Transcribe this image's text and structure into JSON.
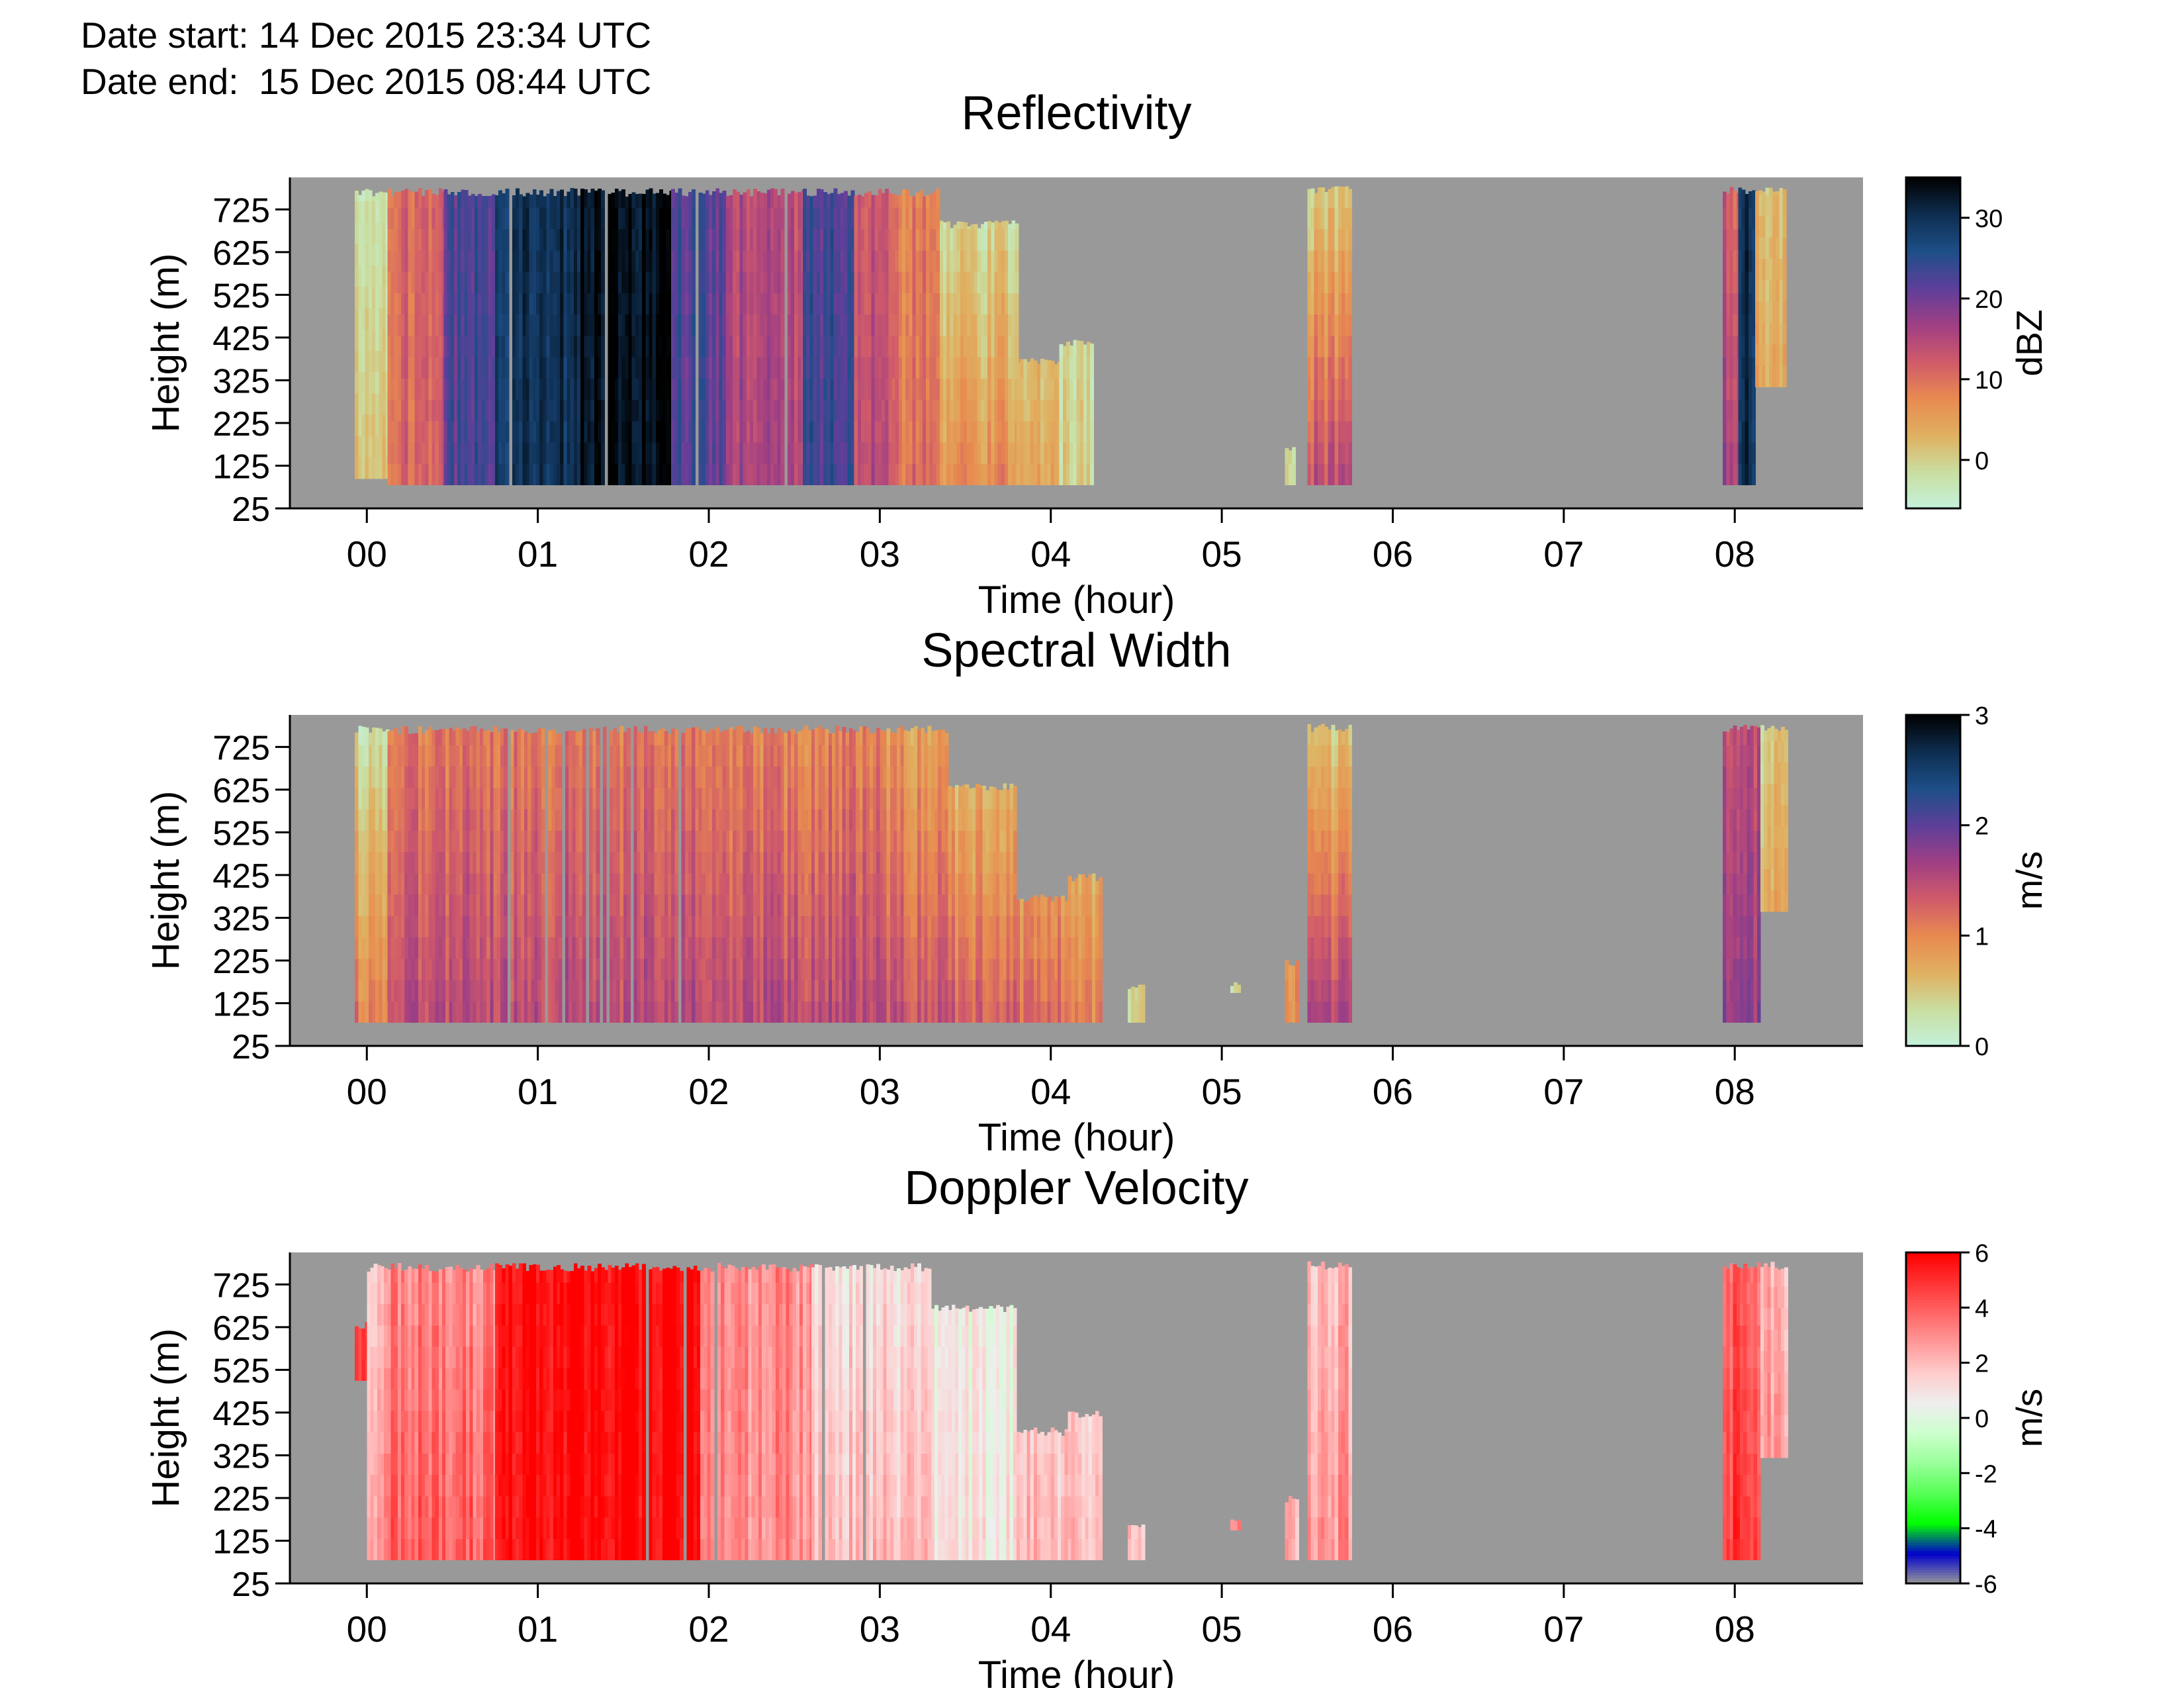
{
  "header": {
    "date_start": "Date start: 14 Dec 2015 23:34 UTC",
    "date_end": "Date end:  15 Dec 2015 08:44 UTC"
  },
  "chart_data": [
    {
      "type": "heatmap",
      "title": "Reflectivity",
      "xlabel": "Time (hour)",
      "ylabel": "Height (m)",
      "x_ticks": [
        "00",
        "01",
        "02",
        "03",
        "04",
        "05",
        "06",
        "07",
        "08"
      ],
      "y_ticks": [
        25,
        125,
        225,
        325,
        425,
        525,
        625,
        725
      ],
      "xlim": [
        -0.45,
        8.75
      ],
      "ylim": [
        25,
        800
      ],
      "grid": false,
      "colorbar": {
        "label": "dBZ",
        "ticks": [
          0,
          10,
          20,
          30
        ],
        "range": [
          -6,
          35
        ]
      },
      "colors": [
        "#c4f2dc",
        "#c9dea0",
        "#e0b060",
        "#e88a50",
        "#d05a6a",
        "#a03f84",
        "#5d3f9a",
        "#1d4f88",
        "#0e2e50",
        "#000000"
      ],
      "nodata_color": "#999999",
      "segments": [
        {
          "t0": -0.07,
          "t1": 0.12,
          "zmin": 95,
          "zmax": 775,
          "v": [
            2,
            -2
          ]
        },
        {
          "t0": 0.12,
          "t1": 0.45,
          "zmin": 80,
          "zmax": 775,
          "v": [
            11,
            11
          ]
        },
        {
          "t0": 0.45,
          "t1": 0.75,
          "zmin": 80,
          "zmax": 775,
          "v": [
            23,
            23
          ]
        },
        {
          "t0": 0.75,
          "t1": 1.25,
          "zmin": 80,
          "zmax": 775,
          "v": [
            30,
            30
          ]
        },
        {
          "t0": 1.25,
          "t1": 1.78,
          "zmin": 80,
          "zmax": 775,
          "v": [
            34,
            34
          ]
        },
        {
          "t0": 1.78,
          "t1": 2.1,
          "zmin": 80,
          "zmax": 775,
          "v": [
            22,
            22
          ]
        },
        {
          "t0": 2.1,
          "t1": 2.55,
          "zmin": 80,
          "zmax": 775,
          "v": [
            16,
            15
          ]
        },
        {
          "t0": 2.55,
          "t1": 2.85,
          "zmin": 80,
          "zmax": 775,
          "v": [
            24,
            23
          ]
        },
        {
          "t0": 2.85,
          "t1": 3.05,
          "zmin": 80,
          "zmax": 775,
          "v": [
            15,
            13
          ]
        },
        {
          "t0": 3.05,
          "t1": 3.35,
          "zmin": 80,
          "zmax": 775,
          "v": [
            10,
            8
          ]
        },
        {
          "t0": 3.35,
          "t1": 3.8,
          "zmin": 80,
          "zmax": 700,
          "v": [
            7,
            -2
          ]
        },
        {
          "t0": 3.8,
          "t1": 4.05,
          "zmin": 80,
          "zmax": 380,
          "v": [
            4,
            -2
          ]
        },
        {
          "t0": 4.05,
          "t1": 4.25,
          "zmin": 80,
          "zmax": 420,
          "v": [
            0,
            -3
          ]
        },
        {
          "t0": 5.37,
          "t1": 5.42,
          "zmin": 80,
          "zmax": 180,
          "v": [
            -2,
            -3
          ]
        },
        {
          "t0": 5.5,
          "t1": 5.75,
          "zmin": 80,
          "zmax": 780,
          "v": [
            14,
            0
          ]
        },
        {
          "t0": 7.93,
          "t1": 8.02,
          "zmin": 80,
          "zmax": 780,
          "v": [
            17,
            12
          ]
        },
        {
          "t0": 8.02,
          "t1": 8.12,
          "zmin": 80,
          "zmax": 780,
          "v": [
            30,
            30
          ]
        },
        {
          "t0": 8.12,
          "t1": 8.3,
          "zmin": 310,
          "zmax": 780,
          "v": [
            6,
            2
          ]
        }
      ]
    },
    {
      "type": "heatmap",
      "title": "Spectral Width",
      "xlabel": "Time (hour)",
      "ylabel": "Height (m)",
      "x_ticks": [
        "00",
        "01",
        "02",
        "03",
        "04",
        "05",
        "06",
        "07",
        "08"
      ],
      "y_ticks": [
        25,
        125,
        225,
        325,
        425,
        525,
        625,
        725
      ],
      "xlim": [
        -0.45,
        8.75
      ],
      "ylim": [
        25,
        800
      ],
      "grid": false,
      "colorbar": {
        "label": "m/s",
        "ticks": [
          0,
          1,
          2,
          3
        ],
        "range": [
          0,
          3
        ]
      },
      "colors": [
        "#c4f2dc",
        "#c9dea0",
        "#e0b060",
        "#e88a50",
        "#d05a6a",
        "#a03f84",
        "#5d3f9a",
        "#1d4f88",
        "#0e2e50",
        "#000000"
      ],
      "nodata_color": "#999999",
      "segments": [
        {
          "t0": -0.07,
          "t1": 0.12,
          "zmin": 80,
          "zmax": 775,
          "v": [
            1.1,
            0.3
          ]
        },
        {
          "t0": 0.12,
          "t1": 0.6,
          "zmin": 80,
          "zmax": 775,
          "v": [
            1.5,
            1.1
          ]
        },
        {
          "t0": 0.6,
          "t1": 1.5,
          "zmin": 80,
          "zmax": 775,
          "v": [
            1.5,
            1.1
          ]
        },
        {
          "t0": 1.5,
          "t1": 2.2,
          "zmin": 80,
          "zmax": 775,
          "v": [
            1.5,
            1.1
          ]
        },
        {
          "t0": 2.2,
          "t1": 3.0,
          "zmin": 80,
          "zmax": 775,
          "v": [
            1.5,
            1.0
          ]
        },
        {
          "t0": 3.0,
          "t1": 3.4,
          "zmin": 80,
          "zmax": 775,
          "v": [
            1.4,
            0.8
          ]
        },
        {
          "t0": 3.4,
          "t1": 3.8,
          "zmin": 80,
          "zmax": 640,
          "v": [
            1.3,
            0.5
          ]
        },
        {
          "t0": 3.8,
          "t1": 4.1,
          "zmin": 80,
          "zmax": 380,
          "v": [
            1.2,
            0.4
          ]
        },
        {
          "t0": 4.1,
          "t1": 4.3,
          "zmin": 80,
          "zmax": 430,
          "v": [
            1.0,
            0.4
          ]
        },
        {
          "t0": 4.45,
          "t1": 4.55,
          "zmin": 80,
          "zmax": 170,
          "v": [
            0.4,
            0.3
          ]
        },
        {
          "t0": 5.05,
          "t1": 5.1,
          "zmin": 150,
          "zmax": 180,
          "v": [
            0.3,
            0.3
          ]
        },
        {
          "t0": 5.37,
          "t1": 5.45,
          "zmin": 80,
          "zmax": 230,
          "v": [
            0.9,
            0.6
          ]
        },
        {
          "t0": 5.5,
          "t1": 5.75,
          "zmin": 80,
          "zmax": 780,
          "v": [
            1.5,
            0.4
          ]
        },
        {
          "t0": 7.93,
          "t1": 8.15,
          "zmin": 80,
          "zmax": 780,
          "v": [
            1.7,
            1.4
          ]
        },
        {
          "t0": 8.15,
          "t1": 8.3,
          "zmin": 340,
          "zmax": 780,
          "v": [
            0.8,
            0.4
          ]
        }
      ]
    },
    {
      "type": "heatmap",
      "title": "Doppler Velocity",
      "xlabel": "Time (hour)",
      "ylabel": "Height (m)",
      "x_ticks": [
        "00",
        "01",
        "02",
        "03",
        "04",
        "05",
        "06",
        "07",
        "08"
      ],
      "y_ticks": [
        25,
        125,
        225,
        325,
        425,
        525,
        625,
        725
      ],
      "xlim": [
        -0.45,
        8.75
      ],
      "ylim": [
        25,
        800
      ],
      "grid": false,
      "colorbar": {
        "label": "m/s",
        "ticks": [
          -6,
          -4,
          -2,
          0,
          2,
          4,
          6
        ],
        "range": [
          -6,
          6
        ]
      },
      "colors": [
        "#999999",
        "#0000cc",
        "#00ff00",
        "#55ff55",
        "#99ff99",
        "#ccffcc",
        "#eeeeee",
        "#ffcccc",
        "#ff9999",
        "#ff6666",
        "#ff3333",
        "#ff0000"
      ],
      "nodata_color": "#999999",
      "segments": [
        {
          "t0": -0.07,
          "t1": 0.0,
          "zmin": 500,
          "zmax": 640,
          "v": [
            5,
            5
          ]
        },
        {
          "t0": 0.0,
          "t1": 0.12,
          "zmin": 80,
          "zmax": 775,
          "v": [
            3,
            2
          ]
        },
        {
          "t0": 0.12,
          "t1": 0.75,
          "zmin": 80,
          "zmax": 775,
          "v": [
            4,
            3
          ]
        },
        {
          "t0": 0.75,
          "t1": 1.95,
          "zmin": 80,
          "zmax": 775,
          "v": [
            6,
            6
          ]
        },
        {
          "t0": 1.95,
          "t1": 2.6,
          "zmin": 80,
          "zmax": 775,
          "v": [
            3,
            3
          ]
        },
        {
          "t0": 2.6,
          "t1": 3.3,
          "zmin": 80,
          "zmax": 775,
          "v": [
            2,
            1
          ]
        },
        {
          "t0": 3.3,
          "t1": 3.8,
          "zmin": 80,
          "zmax": 680,
          "v": [
            1,
            0.5
          ]
        },
        {
          "t0": 3.8,
          "t1": 4.1,
          "zmin": 80,
          "zmax": 390,
          "v": [
            2,
            1
          ]
        },
        {
          "t0": 4.1,
          "t1": 4.3,
          "zmin": 80,
          "zmax": 430,
          "v": [
            2,
            1
          ]
        },
        {
          "t0": 4.45,
          "t1": 4.55,
          "zmin": 80,
          "zmax": 170,
          "v": [
            2,
            2
          ]
        },
        {
          "t0": 5.05,
          "t1": 5.1,
          "zmin": 150,
          "zmax": 180,
          "v": [
            3,
            3
          ]
        },
        {
          "t0": 5.37,
          "t1": 5.45,
          "zmin": 80,
          "zmax": 230,
          "v": [
            2,
            2
          ]
        },
        {
          "t0": 5.5,
          "t1": 5.75,
          "zmin": 80,
          "zmax": 780,
          "v": [
            3,
            2
          ]
        },
        {
          "t0": 7.93,
          "t1": 8.15,
          "zmin": 80,
          "zmax": 780,
          "v": [
            5,
            4
          ]
        },
        {
          "t0": 8.15,
          "t1": 8.3,
          "zmin": 320,
          "zmax": 780,
          "v": [
            3,
            2
          ]
        }
      ]
    }
  ]
}
